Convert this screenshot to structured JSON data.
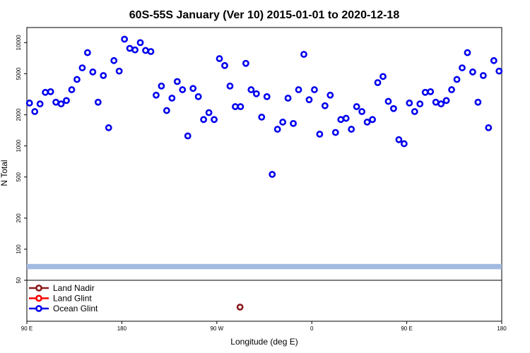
{
  "chart_data": {
    "type": "scatter",
    "title": "60S-55S January (Ver 10)   2015-01-01 to 2020-12-18",
    "xlabel": "Longitude (deg E)",
    "ylabel": "N Total",
    "x_ticks": [
      {
        "value": 90,
        "label": "90 E"
      },
      {
        "value": 180,
        "label": "180"
      },
      {
        "value": 270,
        "label": "90 W"
      },
      {
        "value": 360,
        "label": "0"
      },
      {
        "value": 450,
        "label": "90 E"
      },
      {
        "value": 540,
        "label": "180"
      }
    ],
    "xlim": [
      90,
      540
    ],
    "y_scale": "log",
    "ylim": [
      50,
      14000
    ],
    "y_ticks": [
      50,
      100,
      200,
      500,
      1000,
      2000,
      5000,
      10000
    ],
    "grid": false,
    "legend_position": "bottom-left",
    "series": [
      {
        "name": "Land Nadir",
        "color": "#8b1a1a",
        "points": [
          [
            292,
            38
          ]
        ]
      },
      {
        "name": "Land Glint",
        "color": "#ff0000",
        "points": []
      },
      {
        "name": "Ocean Glint",
        "color": "#0000ee",
        "points": [
          [
            92.5,
            2600
          ],
          [
            97.5,
            2150
          ],
          [
            102.5,
            2550
          ],
          [
            107.5,
            3300
          ],
          [
            112.5,
            3350
          ],
          [
            117.5,
            2650
          ],
          [
            122.5,
            2550
          ],
          [
            127.5,
            2750
          ],
          [
            132.5,
            3500
          ],
          [
            137.5,
            4400
          ],
          [
            142.5,
            5700
          ],
          [
            147.5,
            8000
          ],
          [
            152.5,
            5200
          ],
          [
            157.5,
            2650
          ],
          [
            162.5,
            4800
          ],
          [
            167.5,
            1500
          ],
          [
            172.5,
            6700
          ],
          [
            177.5,
            5300
          ],
          [
            182.5,
            10800
          ],
          [
            187.5,
            8800
          ],
          [
            192.5,
            8500
          ],
          [
            197.5,
            10000
          ],
          [
            202.5,
            8400
          ],
          [
            207.5,
            8200
          ],
          [
            212.5,
            3100
          ],
          [
            217.5,
            3800
          ],
          [
            222.5,
            2200
          ],
          [
            227.5,
            2900
          ],
          [
            232.5,
            4200
          ],
          [
            237.5,
            3500
          ],
          [
            242.5,
            1250
          ],
          [
            247.5,
            3600
          ],
          [
            252.5,
            3000
          ],
          [
            257.5,
            1800
          ],
          [
            262.5,
            2100
          ],
          [
            267.5,
            1800
          ],
          [
            272.5,
            7000
          ],
          [
            277.5,
            6000
          ],
          [
            282.5,
            3800
          ],
          [
            287.5,
            2400
          ],
          [
            292.5,
            2400
          ],
          [
            297.5,
            6300
          ],
          [
            302.5,
            3500
          ],
          [
            307.5,
            3200
          ],
          [
            312.5,
            1900
          ],
          [
            317.5,
            3000
          ],
          [
            322.5,
            530
          ],
          [
            327.5,
            1450
          ],
          [
            332.5,
            1700
          ],
          [
            337.5,
            2900
          ],
          [
            342.5,
            1650
          ],
          [
            347.5,
            3500
          ],
          [
            352.5,
            7700
          ],
          [
            357.5,
            2800
          ],
          [
            362.5,
            3500
          ],
          [
            367.5,
            1300
          ],
          [
            372.5,
            2450
          ],
          [
            377.5,
            3100
          ],
          [
            382.5,
            1350
          ],
          [
            387.5,
            1800
          ],
          [
            392.5,
            1850
          ],
          [
            397.5,
            1450
          ],
          [
            402.5,
            2400
          ],
          [
            407.5,
            2150
          ],
          [
            412.5,
            1700
          ],
          [
            417.5,
            1800
          ],
          [
            422.5,
            4100
          ],
          [
            427.5,
            4700
          ],
          [
            432.5,
            2700
          ],
          [
            437.5,
            2300
          ],
          [
            442.5,
            1150
          ],
          [
            447.5,
            1050
          ],
          [
            452.5,
            2600
          ],
          [
            457.5,
            2150
          ],
          [
            462.5,
            2550
          ],
          [
            467.5,
            3300
          ],
          [
            472.5,
            3350
          ],
          [
            477.5,
            2650
          ],
          [
            482.5,
            2550
          ],
          [
            487.5,
            2750
          ],
          [
            492.5,
            3500
          ],
          [
            497.5,
            4400
          ],
          [
            502.5,
            5700
          ],
          [
            507.5,
            8000
          ],
          [
            512.5,
            5200
          ],
          [
            517.5,
            2650
          ],
          [
            522.5,
            4800
          ],
          [
            527.5,
            1500
          ],
          [
            532.5,
            6700
          ],
          [
            537.5,
            5300
          ]
        ]
      }
    ],
    "band": {
      "color": "#a3bbe0",
      "ymin": 64,
      "ymax": 72
    }
  }
}
